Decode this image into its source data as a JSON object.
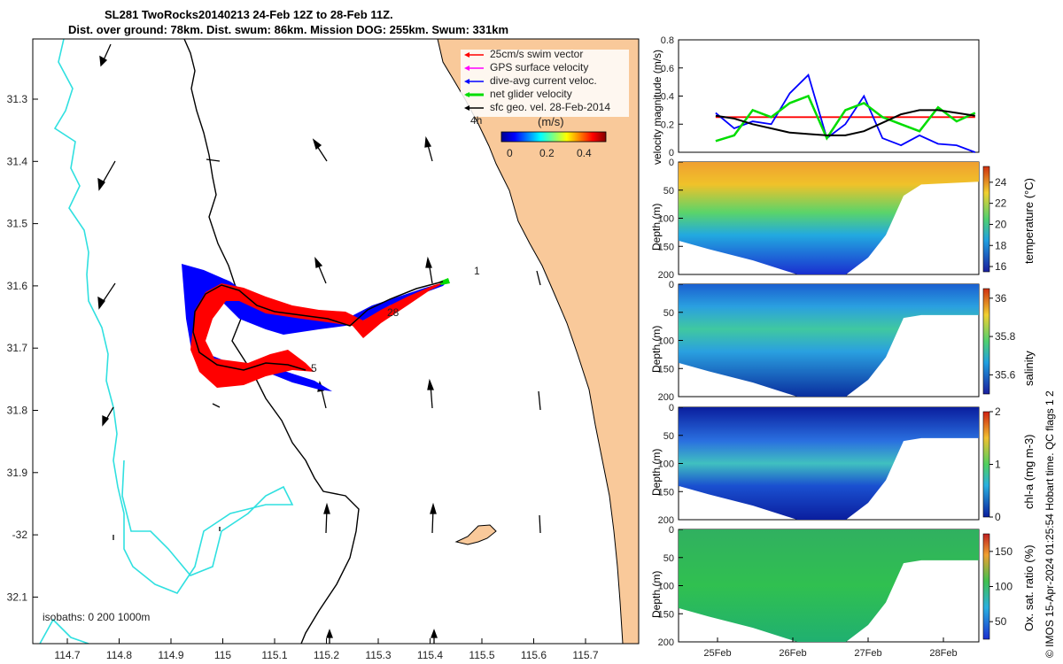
{
  "title": {
    "line1": "SL281 TwoRocks20140213 24-Feb 12Z to 28-Feb 11Z.",
    "line2": "Dist. over ground: 78km. Dist. swum: 86km. Mission DOG: 255km. Swum: 331km"
  },
  "colors": {
    "land": "#f9c99a",
    "coast": "#000000",
    "isobath": "#30e0e0",
    "swim": "#ff0000",
    "current": "#0000ff",
    "net": "#00dd00",
    "gps": "#ff00ff"
  },
  "map": {
    "lon_ticks": [
      "114.7",
      "114.8",
      "114.9",
      "115",
      "115.1",
      "115.2",
      "115.3",
      "115.4",
      "115.5",
      "115.6",
      "115.7"
    ],
    "lat_ticks": [
      "31.3",
      "31.4",
      "31.5",
      "31.6",
      "31.7",
      "31.8",
      "31.9",
      "-32",
      "32.1"
    ],
    "legend": [
      {
        "label": "25cm/s swim vector",
        "color": "#ff0000"
      },
      {
        "label": "GPS surface velocity",
        "color": "#ff00ff"
      },
      {
        "label": "dive-avg current veloc.",
        "color": "#0000ff"
      },
      {
        "label": "net glider velocity",
        "color": "#00dd00"
      },
      {
        "label": "sfc geo. vel. 28-Feb-2014",
        "color": "#000000"
      }
    ],
    "colorbar_unit": "(m/s)",
    "colorbar_ticks": [
      "0",
      "0.2",
      "0.4"
    ],
    "isobaths_label": "isobaths: 0   200  1000m",
    "track_labels": [
      "4h",
      "1",
      "28",
      "5"
    ]
  },
  "chart_data": [
    {
      "type": "line",
      "title": "",
      "ylabel": "velocity magnitude (m/s)",
      "ylim": [
        0,
        0.8
      ],
      "yticks": [
        "0",
        "0.2",
        "0.4",
        "0.6",
        "0.8"
      ],
      "x": [
        25.0,
        25.25,
        25.5,
        25.75,
        26.0,
        26.25,
        26.5,
        26.75,
        27.0,
        27.25,
        27.5,
        27.75,
        28.0,
        28.25,
        28.5
      ],
      "series": [
        {
          "name": "swim",
          "color": "#ff0000",
          "values": [
            0.25,
            0.25,
            0.25,
            0.25,
            0.25,
            0.25,
            0.25,
            0.25,
            0.25,
            0.25,
            0.25,
            0.25,
            0.25,
            0.25,
            0.25
          ]
        },
        {
          "name": "current",
          "color": "#0000ff",
          "values": [
            0.28,
            0.17,
            0.22,
            0.2,
            0.42,
            0.55,
            0.1,
            0.2,
            0.4,
            0.1,
            0.05,
            0.12,
            0.06,
            0.05,
            0.0
          ]
        },
        {
          "name": "net",
          "color": "#00dd00",
          "values": [
            0.08,
            0.12,
            0.3,
            0.25,
            0.35,
            0.4,
            0.1,
            0.3,
            0.35,
            0.25,
            0.2,
            0.15,
            0.32,
            0.22,
            0.28
          ]
        },
        {
          "name": "geostrophic",
          "color": "#000000",
          "values": [
            0.26,
            0.24,
            0.2,
            0.17,
            0.14,
            0.13,
            0.12,
            0.12,
            0.15,
            0.21,
            0.27,
            0.3,
            0.3,
            0.28,
            0.26
          ]
        }
      ]
    },
    {
      "type": "heatmap",
      "ylabel": "Depth (m)",
      "yticks": [
        "0",
        "50",
        "100",
        "150",
        "200"
      ],
      "clabel": "temperature (°C)",
      "cticks": [
        "24",
        "22",
        "20",
        "18",
        "16"
      ],
      "crange": [
        15.5,
        25.5
      ]
    },
    {
      "type": "heatmap",
      "ylabel": "Depth (m)",
      "yticks": [
        "0",
        "50",
        "100",
        "150",
        "200"
      ],
      "clabel": "salinity",
      "cticks": [
        "36",
        "35.8",
        "35.6"
      ],
      "crange": [
        35.5,
        36.05
      ]
    },
    {
      "type": "heatmap",
      "ylabel": "Depth (m)",
      "yticks": [
        "0",
        "50",
        "100",
        "150",
        "200"
      ],
      "clabel": "chl-a (mg m-3)",
      "cticks": [
        "2",
        "1",
        "0"
      ],
      "crange": [
        0,
        2
      ]
    },
    {
      "type": "heatmap",
      "ylabel": "Depth (m)",
      "yticks": [
        "0",
        "50",
        "100",
        "150",
        "200"
      ],
      "clabel": "Ox. sat. ratio (%)",
      "cticks": [
        "150",
        "100",
        "50"
      ],
      "crange": [
        25,
        175
      ],
      "xticks": [
        "25Feb",
        "26Feb",
        "27Feb",
        "28Feb"
      ]
    }
  ],
  "side_note": "© IMOS 15-Apr-2024 01:25:54 Hobart time. QC flags 1  2"
}
